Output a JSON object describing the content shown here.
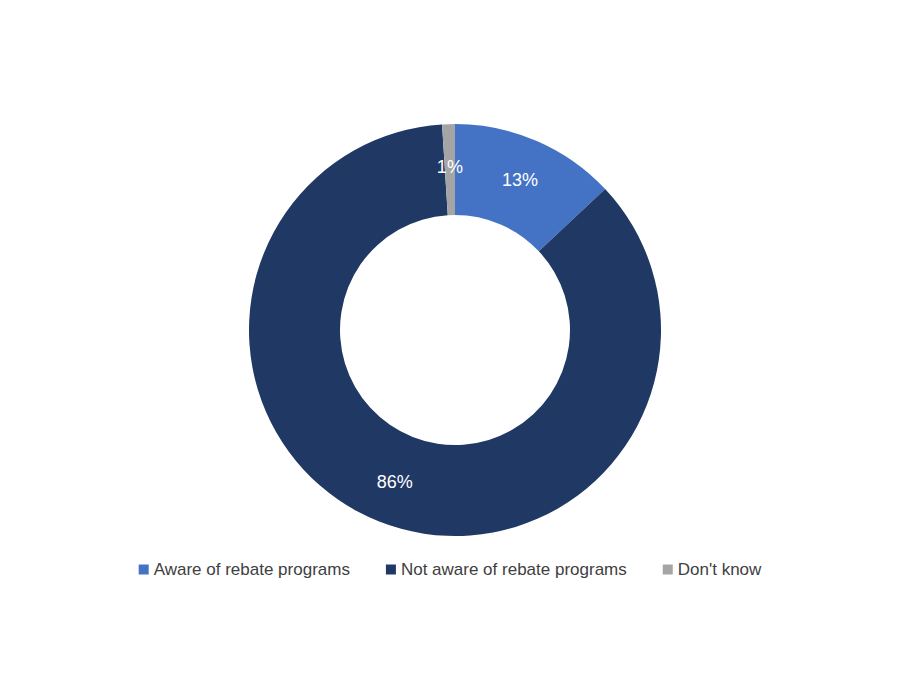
{
  "chart_data": {
    "type": "donut",
    "categories": [
      "Aware of rebate programs",
      "Not aware of rebate programs",
      "Don't know"
    ],
    "values": [
      13,
      86,
      1
    ],
    "value_labels": [
      "13%",
      "86%",
      "1%"
    ],
    "colors": [
      "#4472c4",
      "#203864",
      "#a5a5a5"
    ],
    "data_labels": true,
    "legend": "bottom"
  }
}
